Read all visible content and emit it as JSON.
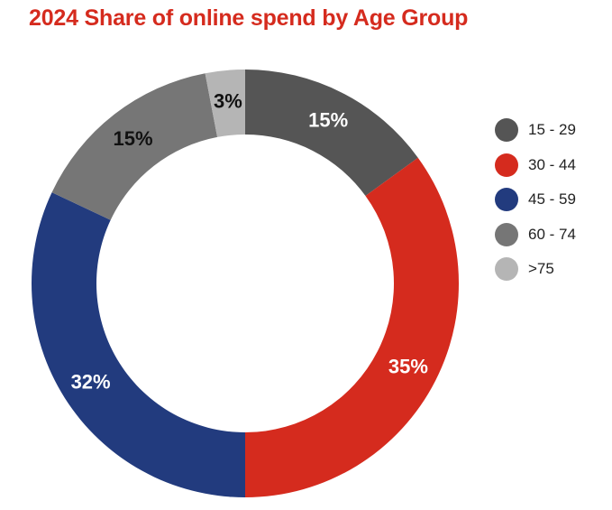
{
  "chart_data": {
    "type": "pie",
    "title": "2024 Share of online spend by Age Group",
    "categories": [
      "15 - 29",
      "30 - 44",
      "45 - 59",
      "60 - 74",
      ">75"
    ],
    "values": [
      15,
      35,
      32,
      15,
      3
    ],
    "labels": [
      "15%",
      "35%",
      "32%",
      "15%",
      "3%"
    ],
    "colors": [
      "#555555",
      "#d52b1e",
      "#223b7e",
      "#767676",
      "#b5b5b5"
    ],
    "label_colors": [
      "#ffffff",
      "#ffffff",
      "#ffffff",
      "#111111",
      "#111111"
    ],
    "donut": true,
    "legend_position": "right"
  }
}
